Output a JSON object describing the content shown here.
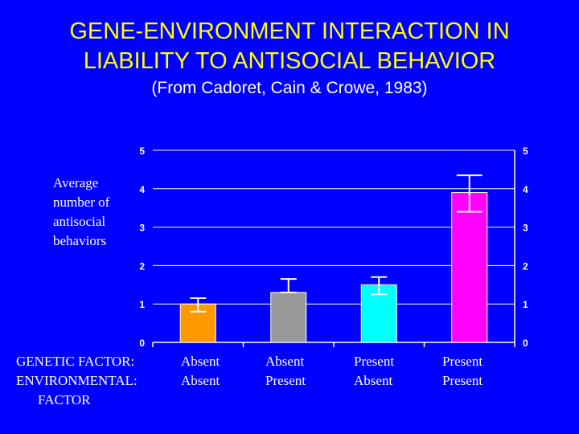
{
  "title_line1": "GENE-ENVIRONMENT INTERACTION IN",
  "title_line2": "LIABILITY TO ANTISOCIAL BEHAVIOR",
  "subtitle": "(From Cadoret, Cain & Crowe, 1983)",
  "row_labels": {
    "genetic": "GENETIC FACTOR:",
    "environmental_line1": "ENVIRONMENTAL:",
    "environmental_line2": "FACTOR"
  },
  "chart_data": {
    "type": "bar",
    "ylabel": "Average number of antisocial behaviors",
    "ylim": [
      0,
      5
    ],
    "yticks": [
      "0",
      "1",
      "2",
      "3",
      "4",
      "5"
    ],
    "grid": true,
    "right_axis_ticks": true,
    "categories": [
      {
        "genetic": "Absent",
        "environmental": "Absent"
      },
      {
        "genetic": "Absent",
        "environmental": "Present"
      },
      {
        "genetic": "Present",
        "environmental": "Absent"
      },
      {
        "genetic": "Present",
        "environmental": "Present"
      }
    ],
    "values": [
      1.0,
      1.3,
      1.5,
      3.9
    ],
    "error_low": [
      0.8,
      1.3,
      1.25,
      3.4
    ],
    "error_high": [
      1.15,
      1.65,
      1.7,
      4.35
    ],
    "colors": [
      "#ff9900",
      "#999999",
      "#00ffff",
      "#ff00ff"
    ]
  }
}
